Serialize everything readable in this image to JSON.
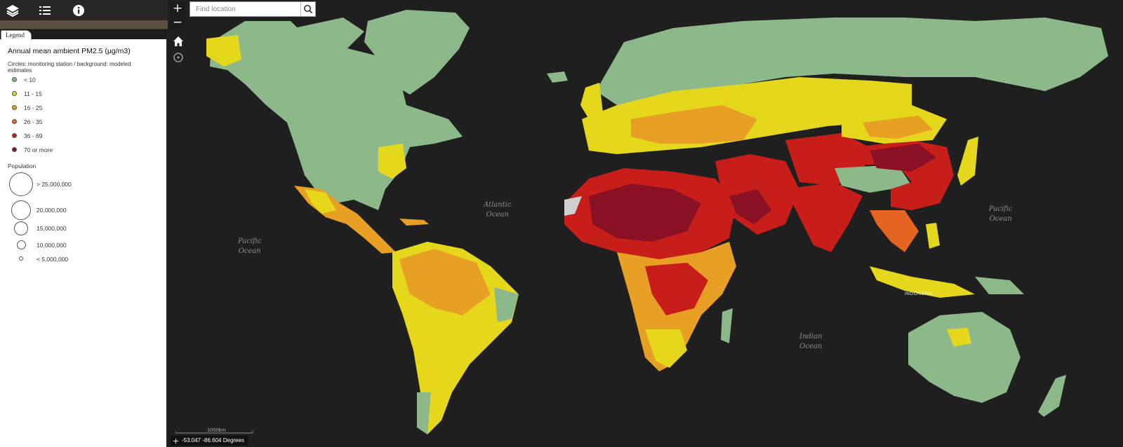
{
  "toolbar": {
    "icons": [
      "layers-icon",
      "list-icon",
      "info-icon"
    ]
  },
  "legend": {
    "tab_label": "Legend",
    "title": "Annual mean ambient PM2.5 (µg/m3)",
    "subtitle": "Circles: monitoring station / background: modeled estimates",
    "classes": [
      {
        "label": "< 10",
        "color": "#8cb88a"
      },
      {
        "label": "11 - 15",
        "color": "#e5d81c"
      },
      {
        "label": "16 - 25",
        "color": "#e8a024"
      },
      {
        "label": "26 - 35",
        "color": "#e46520"
      },
      {
        "label": "36 - 69",
        "color": "#c81e1a"
      },
      {
        "label": "70 or more",
        "color": "#8a1024"
      }
    ],
    "population_title": "Population",
    "population": [
      {
        "label": "> 25,000,000"
      },
      {
        "label": "20,000,000"
      },
      {
        "label": "15,000,000"
      },
      {
        "label": "10,000,000"
      },
      {
        "label": "< 5,000,000"
      }
    ]
  },
  "map": {
    "zoom_in": "+",
    "zoom_out": "−",
    "search_placeholder": "Find location",
    "ocean_labels": [
      "Atlantic\nOcean",
      "Pacific\nOcean",
      "Pacific\nOcean",
      "Indian\nOcean"
    ],
    "place_label": "INDONESIA",
    "scale_label": "1000km",
    "coordinates": "-53.047 -86.604 Degrees",
    "colors": {
      "background": "#1f1f20",
      "land_base": "#8cb88a"
    }
  }
}
